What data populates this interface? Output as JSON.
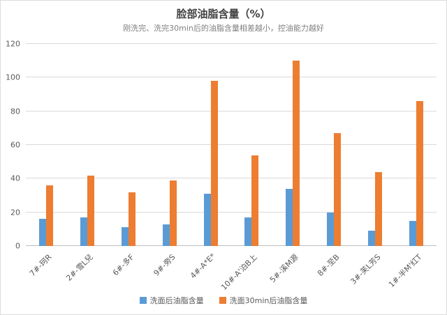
{
  "title": "脸部油脂含量（%）",
  "subtitle": "刚洗完、洗完30min后的油脂含量相差越小，控油能力越好",
  "chart_data": {
    "type": "bar",
    "title": "脸部油脂含量（%）",
    "subtitle": "刚洗完、洗完30min后的油脂含量相差越小，控油能力越好",
    "categories": [
      "7#-珂R",
      "2#-雪L兒",
      "6#-多F",
      "9#-旁S",
      "4#-A*E*",
      "10#-A'泊B上",
      "5#-溪M源",
      "8#-至B",
      "3#-芙L芳S",
      "1#-半M'红T"
    ],
    "series": [
      {
        "name": "洗面后油脂含量",
        "color": "#5B9BD5",
        "values": [
          16,
          17,
          11,
          13,
          31,
          17,
          34,
          20,
          9,
          15
        ]
      },
      {
        "name": "洗面30min后油脂含量",
        "color": "#ED7D31",
        "values": [
          36,
          42,
          32,
          39,
          98,
          54,
          110,
          67,
          44,
          86
        ]
      }
    ],
    "xlabel": "",
    "ylabel": "",
    "ylim": [
      0,
      120
    ],
    "yticks": [
      0,
      20,
      40,
      60,
      80,
      100,
      120
    ],
    "grid": true,
    "legend_position": "bottom"
  }
}
